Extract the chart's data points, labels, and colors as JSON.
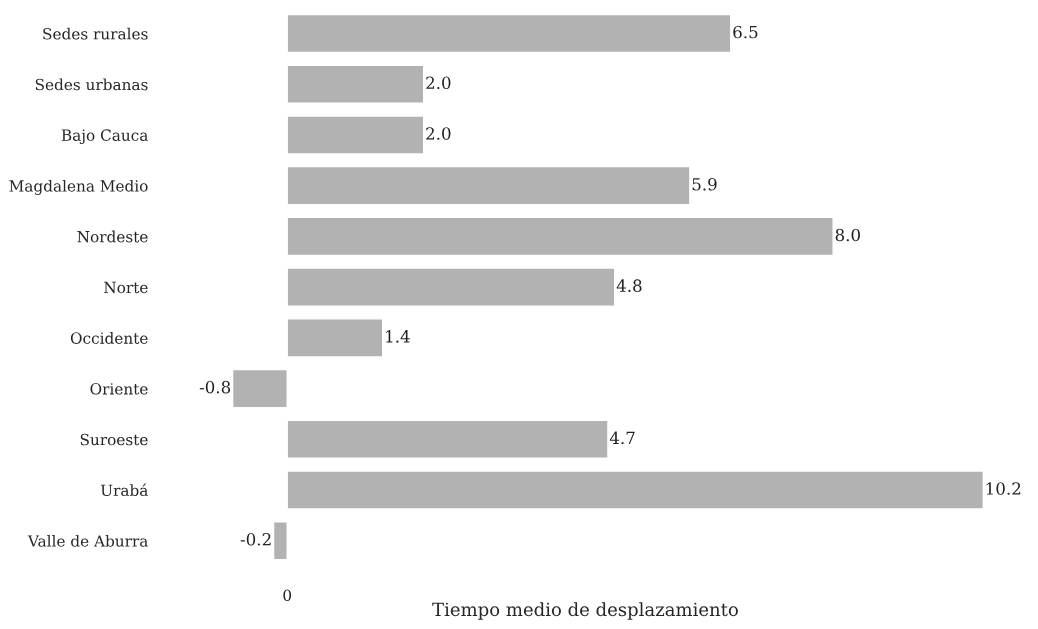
{
  "chart_data": {
    "type": "bar",
    "orientation": "horizontal",
    "xlabel": "Tiempo medio de desplazamiento",
    "categories": [
      "Sedes rurales",
      "Sedes urbanas",
      "Bajo Cauca",
      "Magdalena Medio",
      "Nordeste",
      "Norte",
      "Occidente",
      "Oriente",
      "Suroeste",
      "Urabá",
      "Valle de Aburra"
    ],
    "values": [
      6.5,
      2.0,
      2.0,
      5.9,
      8.0,
      4.8,
      1.4,
      -0.8,
      4.7,
      10.2,
      -0.2
    ],
    "value_labels": [
      "6.5",
      "2.0",
      "2.0",
      "5.9",
      "8.0",
      "4.8",
      "1.4",
      "-0.8",
      "4.7",
      "10.2",
      "-0.2"
    ],
    "color": "#b2b2b2",
    "annotations": [
      "0"
    ],
    "grid": false,
    "legend": false
  }
}
